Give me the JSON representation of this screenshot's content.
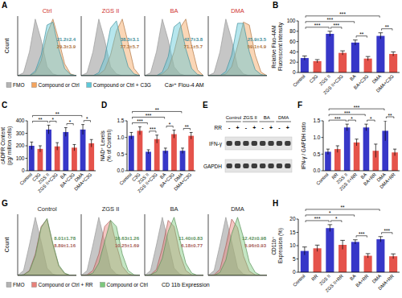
{
  "chart_data": [
    {
      "type": "area",
      "panel_label": "A",
      "x": [
        0,
        1,
        2,
        3,
        4,
        5,
        6,
        7,
        8,
        9,
        10
      ],
      "xlim": [
        0,
        10
      ],
      "ylim": [
        0,
        100
      ],
      "tick_labels": false,
      "y_label": "Count",
      "x_label": "Ca²⁺ Flou-4 AM",
      "legend": "bottom-left",
      "legend_items": [
        {
          "name": "FMO",
          "color": "#b3b3b3"
        },
        {
          "name": "Compound or Ctrl",
          "color": "#f5a45d"
        },
        {
          "name": "Compound or Ctrl + C3G",
          "color": "#5ec8d8"
        }
      ],
      "subplots": [
        {
          "title": "Ctrl",
          "series": [
            [
              0,
              5,
              40,
              95,
              60,
              15,
              3,
              0,
              0,
              0,
              0
            ],
            [
              0,
              0,
              0,
              5,
              25,
              70,
              95,
              60,
              20,
              3,
              0
            ],
            [
              0,
              0,
              0,
              8,
              35,
              85,
              90,
              45,
              12,
              2,
              0
            ]
          ],
          "annotations": [
            {
              "text": "21.2±2.4",
              "series": 2
            },
            {
              "text": "29.3±3.9",
              "series": 1
            }
          ]
        },
        {
          "title": "ZGS II",
          "series": [
            [
              0,
              5,
              40,
              95,
              60,
              15,
              3,
              0,
              0,
              0,
              0
            ],
            [
              0,
              0,
              0,
              2,
              10,
              35,
              75,
              95,
              55,
              12,
              0
            ],
            [
              0,
              0,
              0,
              5,
              30,
              80,
              92,
              50,
              15,
              3,
              0
            ]
          ],
          "annotations": [
            {
              "text": "38.3±3.1",
              "series": 2
            },
            {
              "text": "77.3±5.7",
              "series": 1
            }
          ]
        },
        {
          "title": "BA",
          "series": [
            [
              0,
              5,
              40,
              95,
              60,
              15,
              3,
              0,
              0,
              0,
              0
            ],
            [
              0,
              0,
              0,
              3,
              12,
              40,
              80,
              95,
              50,
              10,
              0
            ],
            [
              0,
              0,
              0,
              6,
              32,
              82,
              90,
              45,
              12,
              2,
              0
            ]
          ],
          "annotations": [
            {
              "text": "42.7±3.8",
              "series": 2
            },
            {
              "text": "71.1±5.7",
              "series": 1
            }
          ]
        },
        {
          "title": "DMA",
          "series": [
            [
              0,
              5,
              40,
              95,
              60,
              15,
              3,
              0,
              0,
              0,
              0
            ],
            [
              0,
              0,
              0,
              3,
              15,
              50,
              90,
              85,
              35,
              6,
              0
            ],
            [
              0,
              0,
              0,
              7,
              35,
              88,
              88,
              40,
              10,
              2,
              0
            ]
          ],
          "annotations": [
            {
              "text": "25.9±3.5",
              "series": 2
            },
            {
              "text": "59.1±4.9",
              "series": 1
            }
          ]
        }
      ]
    },
    {
      "type": "bar",
      "panel_label": "B",
      "y_label": [
        "Relative Fluo-4AM",
        "Fluorescent Intensity"
      ],
      "categories": [
        "Control",
        "C3G",
        "ZGS II",
        "ZGS II+C3G",
        "BA",
        "BA+C3G",
        "DMA",
        "DMA+C3G"
      ],
      "values": [
        28,
        22,
        75,
        38,
        58,
        27,
        71,
        36
      ],
      "errors": [
        4,
        3,
        5,
        4,
        5,
        4,
        6,
        4
      ],
      "colors": [
        "#3737c8",
        "#e5534b",
        "#3737c8",
        "#e5534b",
        "#3737c8",
        "#e5534b",
        "#3737c8",
        "#e5534b"
      ],
      "ylim": [
        0,
        100
      ],
      "yticks": [
        0,
        20,
        40,
        60,
        80,
        100
      ],
      "grid": false,
      "significance": [
        {
          "from": 0,
          "to": 2,
          "label": "***"
        },
        {
          "from": 2,
          "to": 3,
          "label": "***"
        },
        {
          "from": 4,
          "to": 5,
          "label": "**"
        },
        {
          "from": 6,
          "to": 7,
          "label": "**"
        },
        {
          "from": 0,
          "to": 4,
          "label": "***"
        },
        {
          "from": 0,
          "to": 6,
          "label": "***"
        }
      ]
    },
    {
      "type": "bar",
      "panel_label": "C",
      "y_label": [
        "cADPR Content",
        "(pg/ million cells)"
      ],
      "categories": [
        "Control",
        "C3G",
        "ZGS II",
        "ZGS II+C3G",
        "BA",
        "BA+C3G",
        "DMA",
        "DMA+C3G"
      ],
      "values": [
        200,
        175,
        330,
        195,
        310,
        185,
        330,
        220
      ],
      "errors": [
        30,
        25,
        35,
        30,
        35,
        25,
        40,
        30
      ],
      "colors": [
        "#3737c8",
        "#e5534b",
        "#3737c8",
        "#e5534b",
        "#3737c8",
        "#e5534b",
        "#3737c8",
        "#e5534b"
      ],
      "ylim": [
        0,
        400
      ],
      "yticks": [
        0,
        100,
        200,
        300,
        400
      ],
      "grid": false,
      "significance": [
        {
          "from": 0,
          "to": 2,
          "label": "**"
        },
        {
          "from": 2,
          "to": 3,
          "label": "*"
        },
        {
          "from": 4,
          "to": 5,
          "label": "*"
        },
        {
          "from": 6,
          "to": 7,
          "label": "*"
        },
        {
          "from": 0,
          "to": 6,
          "label": "**"
        }
      ]
    },
    {
      "type": "bar",
      "panel_label": "D",
      "y_label": [
        "NAD⁺ Levels",
        "(% of Control)"
      ],
      "categories": [
        "Control",
        "C3G",
        "ZGS II",
        "ZGS II+C3G",
        "BA",
        "BA+C3G",
        "DMA",
        "DMA+C3G"
      ],
      "values": [
        1.05,
        1.2,
        0.57,
        0.95,
        0.6,
        1.1,
        0.6,
        1.05
      ],
      "errors": [
        0.1,
        0.12,
        0.06,
        0.12,
        0.08,
        0.12,
        0.08,
        0.1
      ],
      "colors": [
        "#3737c8",
        "#e5534b",
        "#3737c8",
        "#e5534b",
        "#3737c8",
        "#e5534b",
        "#3737c8",
        "#e5534b"
      ],
      "ylim": [
        0,
        1.5
      ],
      "yticks": [
        {
          "value": 0,
          "label": "0.0"
        },
        0.5,
        {
          "value": 1,
          "label": "1.0"
        },
        1.5
      ],
      "grid": false,
      "significance": [
        {
          "from": 0,
          "to": 2,
          "label": "***"
        },
        {
          "from": 2,
          "to": 3,
          "label": "***"
        },
        {
          "from": 4,
          "to": 5,
          "label": "*"
        },
        {
          "from": 6,
          "to": 7,
          "label": "**"
        },
        {
          "from": 0,
          "to": 4,
          "label": "***"
        },
        {
          "from": 0,
          "to": 6,
          "label": "**"
        }
      ]
    },
    {
      "type": "blot",
      "panel_label": "E",
      "groups": [
        "Control",
        "ZGS II",
        "BA",
        "DMA"
      ],
      "treatment_label": "RR",
      "lane_signs": [
        "-",
        "+",
        "-",
        "+",
        "-",
        "+",
        "-",
        "+"
      ],
      "rows": [
        "IFN-γ",
        "GAPDH"
      ]
    },
    {
      "type": "bar",
      "panel_label": "F",
      "y_label": [
        "IFN-γ / GAPDH ratio"
      ],
      "categories": [
        "Control",
        "RR",
        "ZGS II",
        "ZGS II+RR",
        "BA",
        "BA+RR",
        "DMA",
        "DMA+RR"
      ],
      "values": [
        0.57,
        0.65,
        1.3,
        0.85,
        1.3,
        0.6,
        1.2,
        0.55
      ],
      "errors": [
        0.08,
        0.1,
        0.1,
        0.1,
        0.1,
        0.2,
        0.3,
        0.1
      ],
      "colors": [
        "#3737c8",
        "#e5534b",
        "#3737c8",
        "#e5534b",
        "#3737c8",
        "#e5534b",
        "#3737c8",
        "#e5534b"
      ],
      "ylim": [
        0,
        1.5
      ],
      "yticks": [
        {
          "value": 0,
          "label": "0.0"
        },
        0.5,
        {
          "value": 1,
          "label": "1.0"
        },
        1.5
      ],
      "grid": false,
      "significance": [
        {
          "from": 0,
          "to": 2,
          "label": "***"
        },
        {
          "from": 2,
          "to": 3,
          "label": "*"
        },
        {
          "from": 4,
          "to": 5,
          "label": "*"
        },
        {
          "from": 6,
          "to": 7,
          "label": "**"
        },
        {
          "from": 0,
          "to": 4,
          "label": "***"
        },
        {
          "from": 0,
          "to": 6,
          "label": "***"
        }
      ]
    },
    {
      "type": "area",
      "panel_label": "G",
      "x": [
        0,
        1,
        2,
        3,
        4,
        5,
        6,
        7,
        8,
        9,
        10
      ],
      "xlim": [
        0,
        10
      ],
      "ylim": [
        0,
        100
      ],
      "tick_labels": false,
      "y_label": "Count",
      "x_label": "CD 11b Expression",
      "legend": "bottom-left",
      "legend_items": [
        {
          "name": "FMO",
          "color": "#b3b3b3"
        },
        {
          "name": "Compound or Ctrl + RR",
          "color": "#e8817a"
        },
        {
          "name": "Compound or Ctrl",
          "color": "#7cc87c"
        }
      ],
      "subplots": [
        {
          "title": "Control",
          "series": [
            [
              0,
              8,
              50,
              95,
              55,
              12,
              2,
              0,
              0,
              0,
              0
            ],
            [
              0,
              1,
              8,
              35,
              80,
              92,
              50,
              15,
              3,
              0,
              0
            ],
            [
              0,
              1,
              7,
              32,
              78,
              93,
              52,
              17,
              4,
              0,
              0
            ]
          ],
          "annotations": [
            {
              "text": "8.01±1.78",
              "series": 2
            },
            {
              "text": "8.89±1.16",
              "series": 1
            }
          ]
        },
        {
          "title": "ZGS II",
          "series": [
            [
              0,
              8,
              50,
              95,
              55,
              12,
              2,
              0,
              0,
              0,
              0
            ],
            [
              0,
              1,
              8,
              35,
              80,
              90,
              50,
              15,
              3,
              0,
              0
            ],
            [
              0,
              0,
              4,
              20,
              55,
              90,
              80,
              35,
              8,
              1,
              0
            ]
          ],
          "annotations": [
            {
              "text": "16.63±1.26",
              "series": 2
            },
            {
              "text": "10.25±1.69",
              "series": 1
            }
          ]
        },
        {
          "title": "BA",
          "series": [
            [
              0,
              8,
              50,
              95,
              55,
              12,
              2,
              0,
              0,
              0,
              0
            ],
            [
              0,
              1,
              10,
              45,
              90,
              80,
              35,
              8,
              1,
              0,
              0
            ],
            [
              0,
              1,
              6,
              28,
              72,
              95,
              58,
              20,
              4,
              0,
              0
            ]
          ],
          "annotations": [
            {
              "text": "11.40±0.83",
              "series": 2
            },
            {
              "text": "6.18±0.77",
              "series": 1
            }
          ]
        },
        {
          "title": "DMA",
          "series": [
            [
              0,
              8,
              50,
              95,
              55,
              12,
              2,
              0,
              0,
              0,
              0
            ],
            [
              0,
              1,
              10,
              48,
              92,
              78,
              32,
              7,
              1,
              0,
              0
            ],
            [
              0,
              0,
              5,
              25,
              68,
              95,
              62,
              22,
              5,
              0,
              0
            ]
          ],
          "annotations": [
            {
              "text": "12.42±0.98",
              "series": 2
            },
            {
              "text": "5.96±0.93",
              "series": 1
            }
          ]
        }
      ]
    },
    {
      "type": "bar",
      "panel_label": "H",
      "y_label": [
        "CD11b⁺",
        "Expression (%)"
      ],
      "categories": [
        "Control",
        "RR",
        "ZGS II",
        "ZGS II+RR",
        "BA",
        "BA+RR",
        "DMA",
        "DMA+RR"
      ],
      "values": [
        8,
        9,
        16.6,
        10.3,
        11.4,
        6.2,
        12.4,
        6
      ],
      "errors": [
        1.5,
        1.2,
        1.3,
        1.7,
        0.8,
        0.8,
        1,
        0.9
      ],
      "colors": [
        "#3737c8",
        "#e5534b",
        "#3737c8",
        "#e5534b",
        "#3737c8",
        "#e5534b",
        "#3737c8",
        "#e5534b"
      ],
      "ylim": [
        0,
        20
      ],
      "yticks": [
        0,
        5,
        10,
        15,
        20
      ],
      "grid": false,
      "significance": [
        {
          "from": 0,
          "to": 2,
          "label": "***"
        },
        {
          "from": 2,
          "to": 3,
          "label": "*"
        },
        {
          "from": 4,
          "to": 5,
          "label": "***"
        },
        {
          "from": 6,
          "to": 7,
          "label": "***"
        },
        {
          "from": 0,
          "to": 4,
          "label": "*"
        },
        {
          "from": 0,
          "to": 6,
          "label": "**"
        }
      ]
    }
  ]
}
